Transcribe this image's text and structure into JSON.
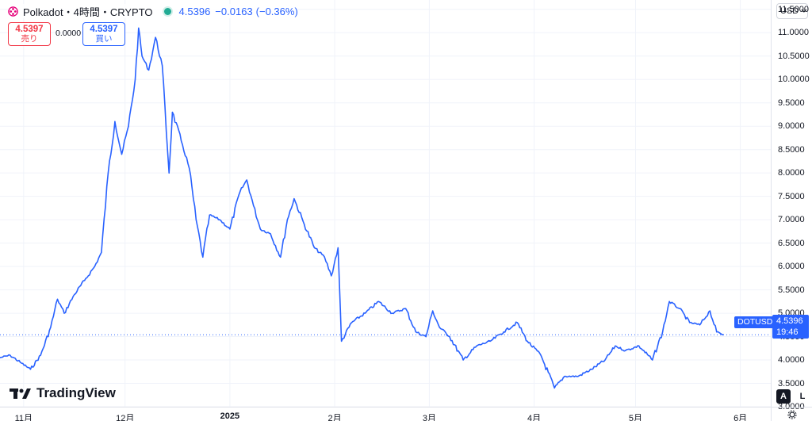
{
  "header": {
    "symbol_title": "Polkadot・4時間・CRYPTO",
    "last_price": "4.5396",
    "change": "−0.0163",
    "change_pct": "(−0.36%)"
  },
  "trade": {
    "sell_price": "4.5397",
    "sell_label": "売り",
    "spread": "0.0000",
    "buy_price": "4.5397",
    "buy_label": "買い"
  },
  "axis": {
    "currency": "USD",
    "y_ticks": [
      "3.0000",
      "3.5000",
      "4.0000",
      "4.5000",
      "5.0000",
      "5.5000",
      "6.0000",
      "6.5000",
      "7.0000",
      "7.5000",
      "8.0000",
      "8.5000",
      "9.0000",
      "9.5000",
      "10.0000",
      "10.5000",
      "11.0000",
      "11.5000"
    ],
    "x_ticks": [
      {
        "label": "11月",
        "bold": false
      },
      {
        "label": "12月",
        "bold": false
      },
      {
        "label": "2025",
        "bold": true
      },
      {
        "label": "2月",
        "bold": false
      },
      {
        "label": "3月",
        "bold": false
      },
      {
        "label": "4月",
        "bold": false
      },
      {
        "label": "5月",
        "bold": false
      },
      {
        "label": "6月",
        "bold": false
      }
    ]
  },
  "price_tag": {
    "symbol": "DOTUSD",
    "price": "4.5396",
    "countdown": "19:46"
  },
  "brand": {
    "name": "TradingView"
  },
  "controls": {
    "auto": "A",
    "log": "L"
  },
  "colors": {
    "line": "#2962ff",
    "down": "#f23645",
    "up": "#22ab94",
    "grid": "#f0f3fa"
  },
  "chart_data": {
    "type": "line",
    "series": [
      {
        "name": "DOTUSD",
        "points": [
          [
            "2024-10-25",
            4.05
          ],
          [
            "2024-10-28",
            4.1
          ],
          [
            "2024-10-31",
            3.95
          ],
          [
            "2024-11-03",
            3.8
          ],
          [
            "2024-11-06",
            4.1
          ],
          [
            "2024-11-09",
            4.7
          ],
          [
            "2024-11-11",
            5.3
          ],
          [
            "2024-11-13",
            5.0
          ],
          [
            "2024-11-16",
            5.4
          ],
          [
            "2024-11-19",
            5.7
          ],
          [
            "2024-11-22",
            6.0
          ],
          [
            "2024-11-24",
            6.3
          ],
          [
            "2024-11-26",
            8.0
          ],
          [
            "2024-11-28",
            9.1
          ],
          [
            "2024-11-30",
            8.4
          ],
          [
            "2024-12-02",
            9.0
          ],
          [
            "2024-12-04",
            10.0
          ],
          [
            "2024-12-05",
            11.1
          ],
          [
            "2024-12-06",
            10.5
          ],
          [
            "2024-12-08",
            10.2
          ],
          [
            "2024-12-10",
            10.9
          ],
          [
            "2024-12-12",
            10.3
          ],
          [
            "2024-12-14",
            8.0
          ],
          [
            "2024-12-15",
            9.3
          ],
          [
            "2024-12-18",
            8.6
          ],
          [
            "2024-12-20",
            8.1
          ],
          [
            "2024-12-22",
            7.0
          ],
          [
            "2024-12-24",
            6.2
          ],
          [
            "2024-12-26",
            7.1
          ],
          [
            "2024-12-29",
            7.0
          ],
          [
            "2025-01-01",
            6.8
          ],
          [
            "2025-01-04",
            7.6
          ],
          [
            "2025-01-06",
            7.85
          ],
          [
            "2025-01-08",
            7.3
          ],
          [
            "2025-01-10",
            6.8
          ],
          [
            "2025-01-13",
            6.7
          ],
          [
            "2025-01-16",
            6.2
          ],
          [
            "2025-01-18",
            7.0
          ],
          [
            "2025-01-20",
            7.45
          ],
          [
            "2025-01-23",
            6.9
          ],
          [
            "2025-01-26",
            6.4
          ],
          [
            "2025-01-29",
            6.2
          ],
          [
            "2025-01-31",
            5.8
          ],
          [
            "2025-02-02",
            6.4
          ],
          [
            "2025-02-03",
            4.4
          ],
          [
            "2025-02-06",
            4.8
          ],
          [
            "2025-02-10",
            5.0
          ],
          [
            "2025-02-14",
            5.25
          ],
          [
            "2025-02-18",
            5.0
          ],
          [
            "2025-02-22",
            5.1
          ],
          [
            "2025-02-25",
            4.6
          ],
          [
            "2025-02-28",
            4.5
          ],
          [
            "2025-03-02",
            5.05
          ],
          [
            "2025-03-04",
            4.7
          ],
          [
            "2025-03-07",
            4.5
          ],
          [
            "2025-03-11",
            4.0
          ],
          [
            "2025-03-15",
            4.3
          ],
          [
            "2025-03-19",
            4.4
          ],
          [
            "2025-03-23",
            4.6
          ],
          [
            "2025-03-27",
            4.8
          ],
          [
            "2025-03-30",
            4.4
          ],
          [
            "2025-04-03",
            4.1
          ],
          [
            "2025-04-07",
            3.4
          ],
          [
            "2025-04-10",
            3.65
          ],
          [
            "2025-04-14",
            3.65
          ],
          [
            "2025-04-18",
            3.8
          ],
          [
            "2025-04-22",
            4.0
          ],
          [
            "2025-04-25",
            4.3
          ],
          [
            "2025-04-28",
            4.2
          ],
          [
            "2025-05-02",
            4.3
          ],
          [
            "2025-05-06",
            4.0
          ],
          [
            "2025-05-09",
            4.6
          ],
          [
            "2025-05-11",
            5.25
          ],
          [
            "2025-05-14",
            5.1
          ],
          [
            "2025-05-17",
            4.8
          ],
          [
            "2025-05-20",
            4.75
          ],
          [
            "2025-05-23",
            5.05
          ],
          [
            "2025-05-25",
            4.6
          ],
          [
            "2025-05-27",
            4.5396
          ]
        ]
      }
    ],
    "xlim": [
      "2024-10-25",
      "2025-06-10"
    ],
    "ylim": [
      3.0,
      11.7
    ],
    "grid": true,
    "current_price": 4.5396
  }
}
